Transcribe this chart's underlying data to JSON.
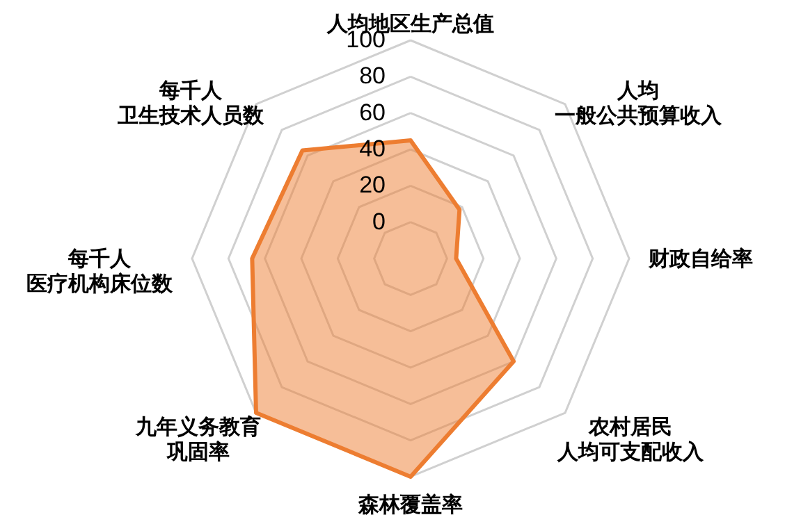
{
  "chart_data": {
    "type": "radar",
    "categories": [
      "人均地区生产总值",
      "人均一般公共预算收入",
      "财政自给率",
      "农村居民人均可支配收入",
      "森林覆盖率",
      "九年义务教育巩固率",
      "每千人医疗机构床位数",
      "每千人卫生技术人员数"
    ],
    "ylim": [
      -20,
      100
    ],
    "yticks": [
      0,
      20,
      40,
      60,
      80,
      100
    ],
    "grid": true,
    "series": [
      {
        "color": "#ed7d31",
        "values": [
          45,
          18,
          5,
          60,
          100,
          100,
          67,
          64
        ]
      }
    ]
  }
}
